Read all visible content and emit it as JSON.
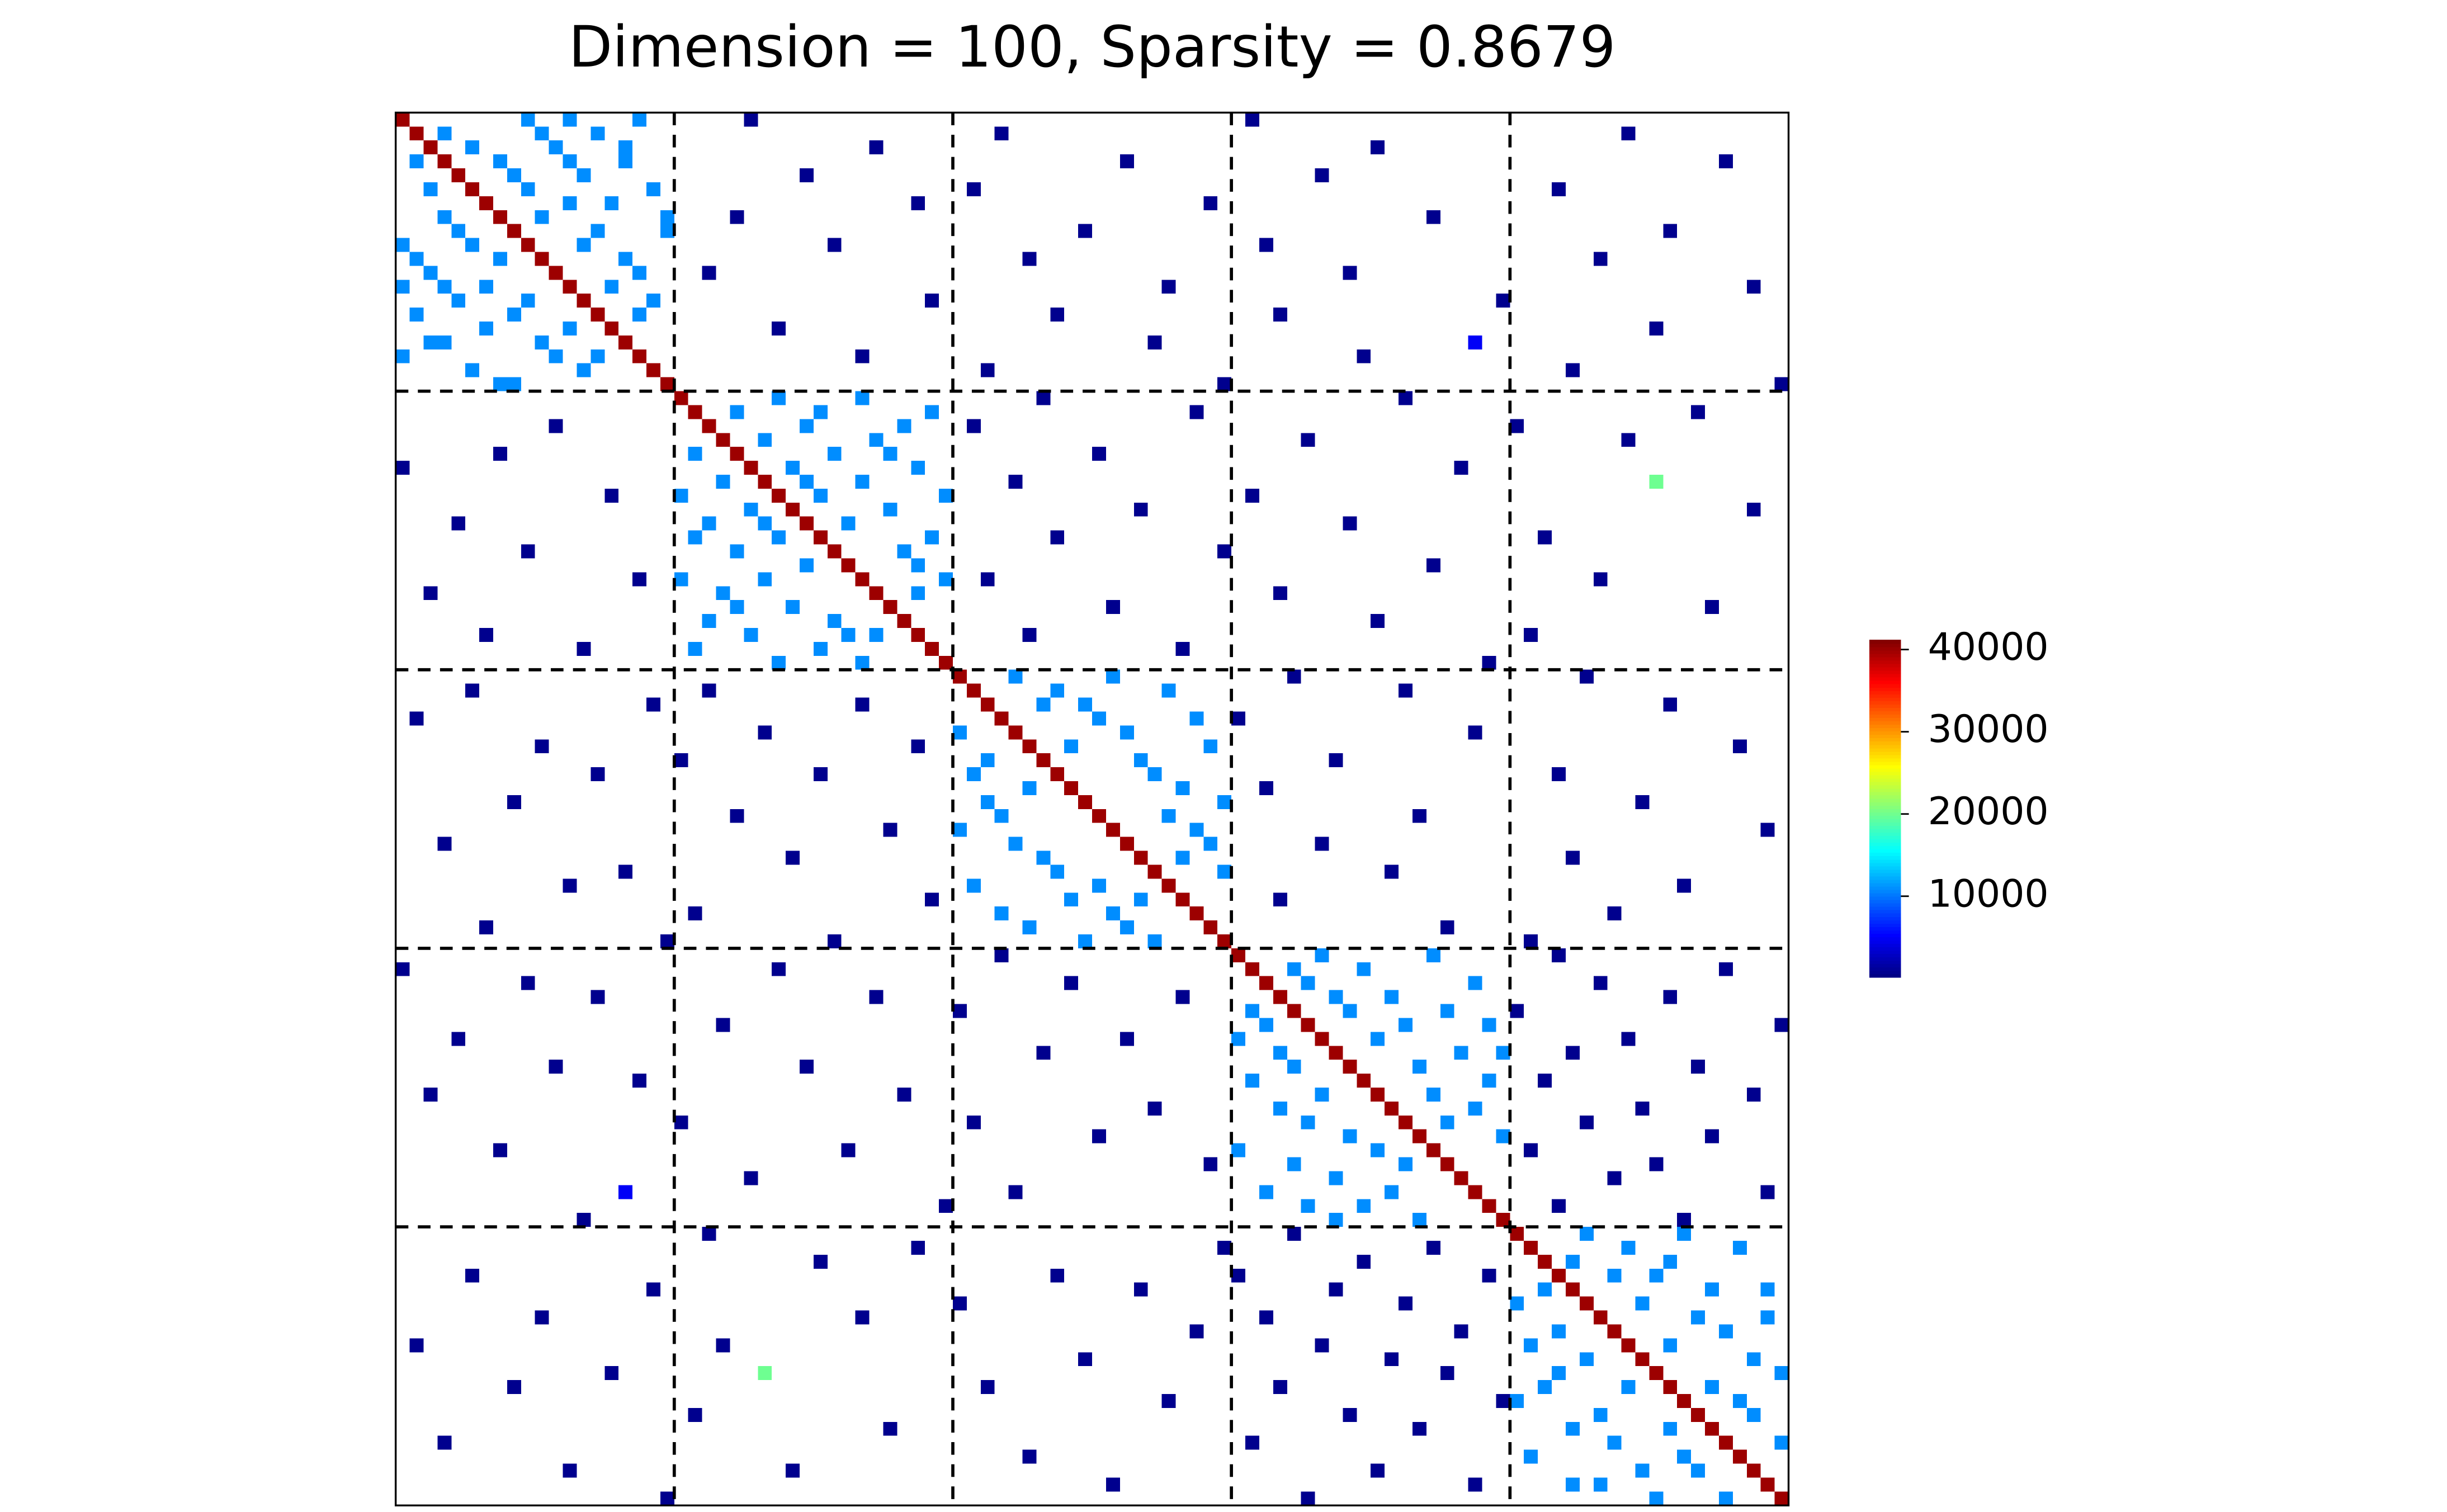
{
  "chart_data": {
    "type": "heatmap",
    "title": "Dimension = 100, Sparsity = 0.8679",
    "size": 100,
    "symmetric": true,
    "colormap": "jet",
    "clim": [
      200,
      41200
    ],
    "colorbar_ticks": [
      10000,
      20000,
      30000,
      40000
    ],
    "block_lines": [
      20,
      40,
      60,
      80
    ],
    "diagonal": [
      40000,
      40000,
      40000,
      40000,
      40000,
      40000,
      40000,
      40000,
      40000,
      40000,
      40000,
      40000,
      40000,
      40000,
      40000,
      40000,
      40000,
      40000,
      40000,
      40000,
      40000,
      40000,
      40000,
      40000,
      40000,
      40000,
      40000,
      40000,
      40000,
      40000,
      40000,
      40000,
      40000,
      40000,
      40000,
      40000,
      40000,
      40000,
      40000,
      40000,
      40000,
      40000,
      40000,
      40000,
      40000,
      40000,
      40000,
      40000,
      40000,
      40000,
      40000,
      40000,
      40000,
      40000,
      40000,
      40000,
      40000,
      40000,
      40000,
      40000,
      40000,
      40000,
      40000,
      40000,
      40000,
      40000,
      40000,
      40000,
      40000,
      40000,
      40000,
      40000,
      40000,
      40000,
      40000,
      40000,
      40000,
      40000,
      40000,
      40000,
      40000,
      40000,
      40000,
      40000,
      40000,
      40000,
      40000,
      40000,
      40000,
      40000,
      40000,
      40000,
      40000,
      40000,
      40000,
      40000,
      40000,
      40000,
      40000,
      40000
    ],
    "cells": [
      [
        0,
        9,
        11000
      ],
      [
        0,
        12,
        11000
      ],
      [
        1,
        3,
        11000
      ],
      [
        1,
        10,
        11000
      ],
      [
        1,
        14,
        11000
      ],
      [
        2,
        5,
        11000
      ],
      [
        2,
        11,
        11000
      ],
      [
        3,
        7,
        11000
      ],
      [
        3,
        16,
        11000
      ],
      [
        4,
        8,
        11000
      ],
      [
        4,
        13,
        11000
      ],
      [
        5,
        9,
        11000
      ],
      [
        5,
        18,
        11000
      ],
      [
        6,
        12,
        11000
      ],
      [
        6,
        15,
        11000
      ],
      [
        7,
        10,
        11000
      ],
      [
        8,
        14,
        11000
      ],
      [
        8,
        19,
        11000
      ],
      [
        9,
        13,
        11000
      ],
      [
        10,
        16,
        11000
      ],
      [
        11,
        17,
        11000
      ],
      [
        12,
        15,
        11000
      ],
      [
        13,
        18,
        11000
      ],
      [
        14,
        17,
        11000
      ],
      [
        2,
        16,
        11000
      ],
      [
        0,
        17,
        11000
      ],
      [
        3,
        12,
        11000
      ],
      [
        7,
        19,
        11000
      ],
      [
        20,
        27,
        11000
      ],
      [
        20,
        33,
        11000
      ],
      [
        21,
        24,
        11000
      ],
      [
        21,
        30,
        11000
      ],
      [
        22,
        29,
        11000
      ],
      [
        22,
        36,
        11000
      ],
      [
        23,
        26,
        11000
      ],
      [
        23,
        34,
        11000
      ],
      [
        24,
        31,
        11000
      ],
      [
        25,
        28,
        11000
      ],
      [
        25,
        37,
        11000
      ],
      [
        26,
        33,
        11000
      ],
      [
        27,
        30,
        11000
      ],
      [
        27,
        39,
        11000
      ],
      [
        28,
        35,
        11000
      ],
      [
        29,
        32,
        11000
      ],
      [
        30,
        38,
        11000
      ],
      [
        31,
        36,
        11000
      ],
      [
        32,
        37,
        11000
      ],
      [
        33,
        39,
        11000
      ],
      [
        21,
        38,
        11000
      ],
      [
        24,
        35,
        11000
      ],
      [
        26,
        29,
        11000
      ],
      [
        34,
        37,
        11000
      ],
      [
        40,
        44,
        11000
      ],
      [
        40,
        51,
        11000
      ],
      [
        41,
        47,
        11000
      ],
      [
        41,
        55,
        11000
      ],
      [
        42,
        49,
        11000
      ],
      [
        43,
        50,
        11000
      ],
      [
        43,
        57,
        11000
      ],
      [
        44,
        52,
        11000
      ],
      [
        45,
        48,
        11000
      ],
      [
        45,
        58,
        11000
      ],
      [
        46,
        53,
        11000
      ],
      [
        47,
        54,
        11000
      ],
      [
        48,
        56,
        11000
      ],
      [
        49,
        59,
        11000
      ],
      [
        50,
        55,
        11000
      ],
      [
        51,
        57,
        11000
      ],
      [
        52,
        58,
        11000
      ],
      [
        53,
        56,
        11000
      ],
      [
        42,
        46,
        11000
      ],
      [
        54,
        59,
        11000
      ],
      [
        60,
        66,
        11000
      ],
      [
        60,
        74,
        11000
      ],
      [
        61,
        69,
        11000
      ],
      [
        62,
        65,
        11000
      ],
      [
        62,
        77,
        11000
      ],
      [
        63,
        71,
        11000
      ],
      [
        64,
        68,
        11000
      ],
      [
        64,
        75,
        11000
      ],
      [
        65,
        72,
        11000
      ],
      [
        66,
        70,
        11000
      ],
      [
        67,
        76,
        11000
      ],
      [
        67,
        79,
        11000
      ],
      [
        68,
        73,
        11000
      ],
      [
        69,
        78,
        11000
      ],
      [
        70,
        74,
        11000
      ],
      [
        71,
        77,
        11000
      ],
      [
        72,
        75,
        11000
      ],
      [
        73,
        79,
        11000
      ],
      [
        61,
        64,
        11000
      ],
      [
        63,
        67,
        11000
      ],
      [
        65,
        78,
        11000
      ],
      [
        80,
        85,
        11000
      ],
      [
        80,
        92,
        11000
      ],
      [
        81,
        88,
        11000
      ],
      [
        81,
        96,
        11000
      ],
      [
        82,
        84,
        11000
      ],
      [
        82,
        91,
        11000
      ],
      [
        83,
        90,
        11000
      ],
      [
        84,
        94,
        11000
      ],
      [
        85,
        89,
        11000
      ],
      [
        86,
        93,
        11000
      ],
      [
        86,
        98,
        11000
      ],
      [
        87,
        95,
        11000
      ],
      [
        88,
        91,
        11000
      ],
      [
        89,
        97,
        11000
      ],
      [
        90,
        99,
        11000
      ],
      [
        91,
        94,
        11000
      ],
      [
        92,
        96,
        11000
      ],
      [
        93,
        97,
        11000
      ],
      [
        95,
        99,
        11000
      ],
      [
        83,
        87,
        11000
      ],
      [
        84,
        98,
        11000
      ],
      [
        0,
        25,
        800
      ],
      [
        0,
        61,
        800
      ],
      [
        1,
        43,
        800
      ],
      [
        1,
        88,
        800
      ],
      [
        2,
        34,
        800
      ],
      [
        2,
        70,
        800
      ],
      [
        3,
        52,
        800
      ],
      [
        3,
        95,
        800
      ],
      [
        4,
        29,
        800
      ],
      [
        4,
        66,
        800
      ],
      [
        5,
        41,
        800
      ],
      [
        5,
        83,
        800
      ],
      [
        6,
        37,
        800
      ],
      [
        6,
        58,
        800
      ],
      [
        7,
        24,
        800
      ],
      [
        7,
        74,
        800
      ],
      [
        8,
        49,
        800
      ],
      [
        8,
        91,
        800
      ],
      [
        9,
        31,
        800
      ],
      [
        9,
        62,
        800
      ],
      [
        10,
        45,
        800
      ],
      [
        10,
        86,
        800
      ],
      [
        11,
        22,
        800
      ],
      [
        11,
        68,
        800
      ],
      [
        12,
        55,
        800
      ],
      [
        12,
        97,
        800
      ],
      [
        13,
        38,
        800
      ],
      [
        13,
        79,
        800
      ],
      [
        14,
        47,
        800
      ],
      [
        14,
        63,
        800
      ],
      [
        15,
        27,
        800
      ],
      [
        15,
        90,
        800
      ],
      [
        16,
        54,
        800
      ],
      [
        16,
        77,
        5000
      ],
      [
        17,
        33,
        800
      ],
      [
        17,
        69,
        800
      ],
      [
        18,
        42,
        800
      ],
      [
        18,
        84,
        800
      ],
      [
        19,
        59,
        800
      ],
      [
        19,
        99,
        800
      ],
      [
        20,
        46,
        800
      ],
      [
        20,
        72,
        800
      ],
      [
        21,
        57,
        800
      ],
      [
        21,
        93,
        800
      ],
      [
        22,
        41,
        800
      ],
      [
        22,
        80,
        800
      ],
      [
        23,
        65,
        800
      ],
      [
        23,
        88,
        800
      ],
      [
        24,
        50,
        800
      ],
      [
        25,
        76,
        800
      ],
      [
        26,
        44,
        800
      ],
      [
        26,
        90,
        20000
      ],
      [
        27,
        61,
        800
      ],
      [
        28,
        53,
        800
      ],
      [
        28,
        97,
        800
      ],
      [
        29,
        68,
        800
      ],
      [
        30,
        47,
        800
      ],
      [
        30,
        82,
        800
      ],
      [
        31,
        59,
        800
      ],
      [
        32,
        74,
        800
      ],
      [
        33,
        42,
        800
      ],
      [
        33,
        86,
        800
      ],
      [
        34,
        63,
        800
      ],
      [
        35,
        51,
        800
      ],
      [
        35,
        94,
        800
      ],
      [
        36,
        70,
        800
      ],
      [
        37,
        45,
        800
      ],
      [
        37,
        81,
        800
      ],
      [
        38,
        56,
        800
      ],
      [
        39,
        78,
        800
      ],
      [
        40,
        64,
        800
      ],
      [
        40,
        85,
        800
      ],
      [
        41,
        72,
        800
      ],
      [
        42,
        91,
        800
      ],
      [
        43,
        60,
        800
      ],
      [
        44,
        77,
        800
      ],
      [
        45,
        96,
        800
      ],
      [
        46,
        67,
        800
      ],
      [
        47,
        83,
        800
      ],
      [
        48,
        62,
        800
      ],
      [
        49,
        89,
        800
      ],
      [
        50,
        73,
        800
      ],
      [
        51,
        98,
        800
      ],
      [
        52,
        66,
        800
      ],
      [
        53,
        84,
        800
      ],
      [
        54,
        71,
        800
      ],
      [
        55,
        92,
        800
      ],
      [
        56,
        63,
        800
      ],
      [
        57,
        87,
        800
      ],
      [
        58,
        75,
        800
      ],
      [
        59,
        81,
        800
      ],
      [
        60,
        83,
        800
      ],
      [
        61,
        95,
        800
      ],
      [
        62,
        86,
        800
      ],
      [
        63,
        91,
        800
      ],
      [
        64,
        80,
        800
      ],
      [
        65,
        99,
        800
      ],
      [
        66,
        88,
        800
      ],
      [
        67,
        84,
        800
      ],
      [
        68,
        93,
        800
      ],
      [
        69,
        82,
        800
      ],
      [
        70,
        97,
        800
      ],
      [
        71,
        89,
        800
      ],
      [
        72,
        85,
        800
      ],
      [
        73,
        94,
        800
      ],
      [
        74,
        81,
        800
      ],
      [
        75,
        90,
        800
      ],
      [
        76,
        87,
        800
      ],
      [
        77,
        98,
        800
      ],
      [
        78,
        83,
        800
      ],
      [
        79,
        92,
        800
      ]
    ]
  }
}
